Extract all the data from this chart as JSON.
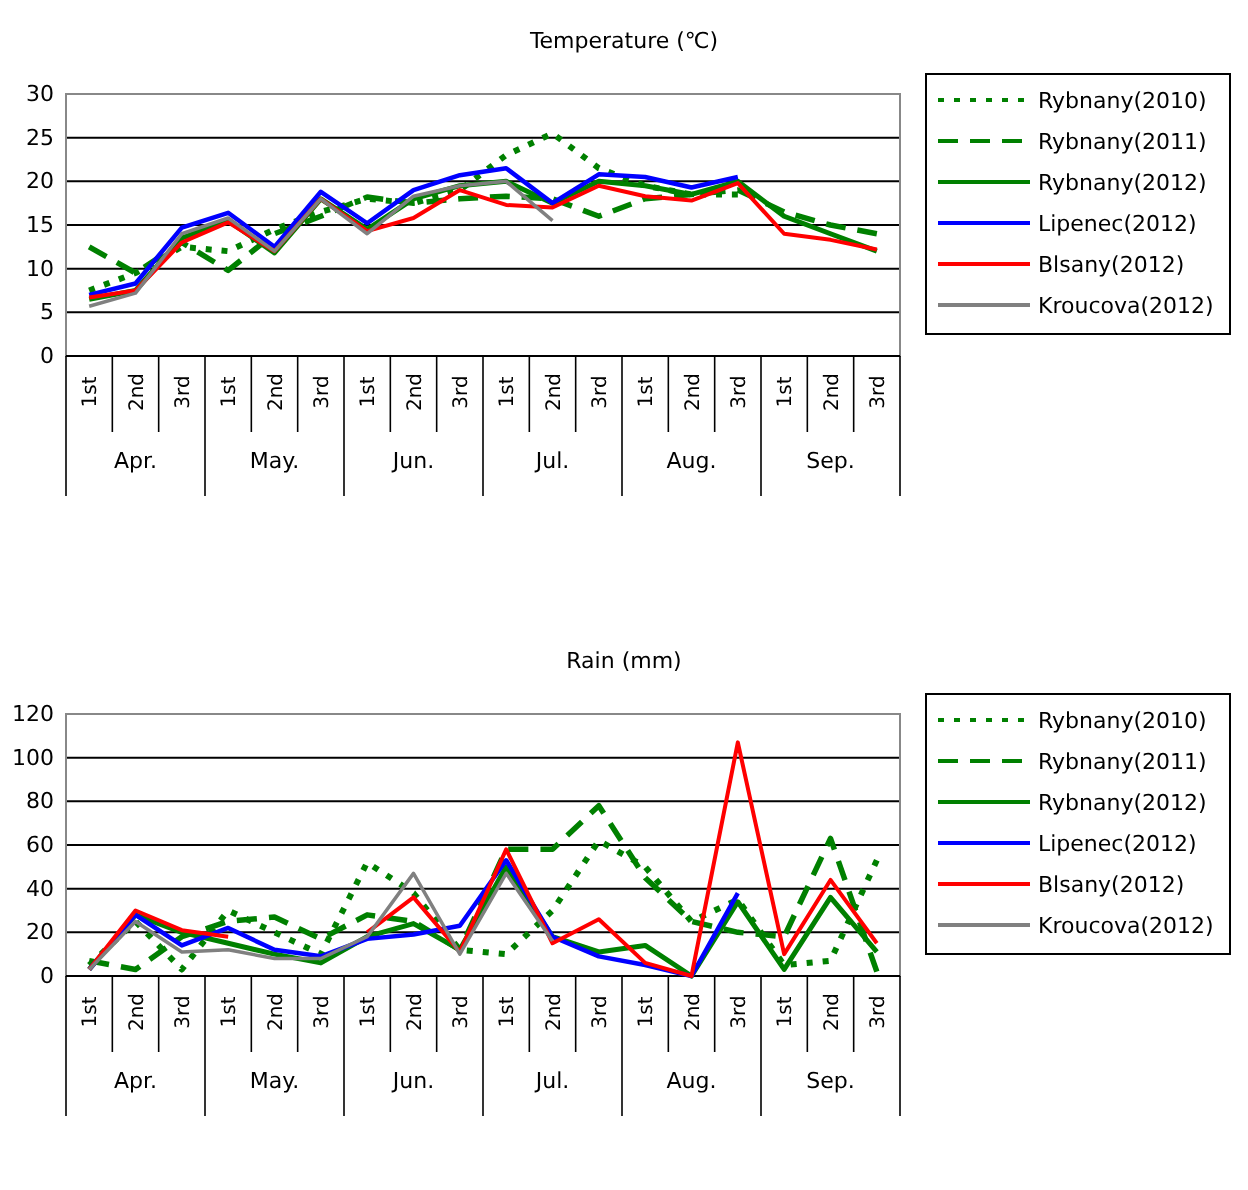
{
  "chart_data": [
    {
      "type": "line",
      "title": "Temperature (℃)",
      "categories": [
        "1st",
        "2nd",
        "3rd",
        "1st",
        "2nd",
        "3rd",
        "1st",
        "2nd",
        "3rd",
        "1st",
        "2nd",
        "3rd",
        "1st",
        "2nd",
        "3rd",
        "1st",
        "2nd",
        "3rd"
      ],
      "annotations": [
        "Apr.",
        "May.",
        "Jun.",
        "Jul.",
        "Aug.",
        "Sep."
      ],
      "ylim": [
        0,
        30
      ],
      "yticks": [
        0,
        5,
        10,
        15,
        20,
        25,
        30
      ],
      "grid": "y",
      "legend": "right",
      "marker": "none",
      "series": [
        {
          "name": "Rybnany(2010)",
          "color": "#008000",
          "line_style": "dotted",
          "values": [
            7.5,
            9.5,
            12.5,
            12,
            14.5,
            16.5,
            18,
            17.5,
            19,
            23,
            25.5,
            21.5,
            19.5,
            18.5,
            18.5,
            null,
            null,
            null
          ]
        },
        {
          "name": "Rybnany(2011)",
          "color": "#008000",
          "line_style": "dashed",
          "values": [
            12.5,
            9.5,
            13,
            9.8,
            14,
            16,
            18.2,
            17.5,
            18,
            18.3,
            18,
            16,
            18,
            18.5,
            19,
            16.5,
            15,
            14
          ]
        },
        {
          "name": "Rybnany(2012)",
          "color": "#008000",
          "line_style": "solid",
          "values": [
            6.5,
            7.5,
            13.5,
            15.5,
            11.8,
            18,
            14.5,
            18,
            19.5,
            20,
            17.5,
            20,
            19.5,
            18.5,
            20,
            16,
            14,
            12
          ]
        },
        {
          "name": "Lipenec(2012)",
          "color": "#0000ff",
          "line_style": "solid",
          "values": [
            7,
            8.3,
            14.7,
            16.4,
            12.5,
            18.8,
            15.2,
            19,
            20.7,
            21.5,
            17.5,
            20.8,
            20.5,
            19.3,
            20.5,
            null,
            null,
            null
          ]
        },
        {
          "name": "Blsany(2012)",
          "color": "#ff0000",
          "line_style": "solid",
          "values": [
            6.7,
            7.5,
            13,
            15.3,
            12,
            18,
            14.3,
            15.8,
            19,
            17.3,
            17,
            19.5,
            18.3,
            17.8,
            19.8,
            14,
            13.3,
            12.2
          ]
        },
        {
          "name": "Kroucova(2012)",
          "color": "#808080",
          "line_style": "solid",
          "values": [
            5.7,
            7.2,
            14,
            15.8,
            12,
            18,
            14,
            18.3,
            19.5,
            20,
            15.5,
            null,
            null,
            null,
            null,
            null,
            null,
            null
          ]
        }
      ]
    },
    {
      "type": "line",
      "title": "Rain (mm)",
      "categories": [
        "1st",
        "2nd",
        "3rd",
        "1st",
        "2nd",
        "3rd",
        "1st",
        "2nd",
        "3rd",
        "1st",
        "2nd",
        "3rd",
        "1st",
        "2nd",
        "3rd",
        "1st",
        "2nd",
        "3rd"
      ],
      "annotations": [
        "Apr.",
        "May.",
        "Jun.",
        "Jul.",
        "Aug.",
        "Sep."
      ],
      "ylim": [
        0,
        120
      ],
      "yticks": [
        0,
        20,
        40,
        60,
        80,
        100,
        120
      ],
      "grid": "y",
      "legend": "right",
      "marker": "none",
      "series": [
        {
          "name": "Rybnany(2010)",
          "color": "#008000",
          "line_style": "dotted",
          "values": [
            5,
            25,
            3,
            30,
            20,
            10,
            52,
            38,
            12,
            10,
            30,
            62,
            50,
            25,
            35,
            5,
            7,
            53
          ]
        },
        {
          "name": "Rybnany(2011)",
          "color": "#008000",
          "line_style": "dashed",
          "values": [
            7,
            3,
            18,
            25,
            27,
            17,
            28,
            25,
            12,
            58,
            58,
            78,
            45,
            25,
            20,
            18,
            63,
            2
          ]
        },
        {
          "name": "Rybnany(2012)",
          "color": "#008000",
          "line_style": "solid",
          "values": [
            3,
            28,
            20,
            15,
            10,
            6,
            18,
            24,
            12,
            50,
            18,
            11,
            14,
            0,
            34,
            3,
            36,
            11
          ]
        },
        {
          "name": "Lipenec(2012)",
          "color": "#0000ff",
          "line_style": "solid",
          "values": [
            3,
            28,
            14,
            22,
            12,
            9,
            17,
            19,
            23,
            53,
            18,
            9,
            5,
            0,
            38,
            null,
            null,
            null
          ]
        },
        {
          "name": "Blsany(2012)",
          "color": "#ff0000",
          "line_style": "solid",
          "values": [
            3,
            30,
            21,
            18,
            null,
            null,
            20,
            36,
            11,
            58,
            15,
            26,
            6,
            0,
            107,
            10,
            44,
            15
          ]
        },
        {
          "name": "Kroucova(2012)",
          "color": "#808080",
          "line_style": "solid",
          "values": [
            3,
            25,
            11,
            12,
            8,
            8,
            18,
            47,
            10,
            47,
            16,
            null,
            null,
            null,
            null,
            null,
            null,
            null
          ]
        }
      ]
    }
  ]
}
